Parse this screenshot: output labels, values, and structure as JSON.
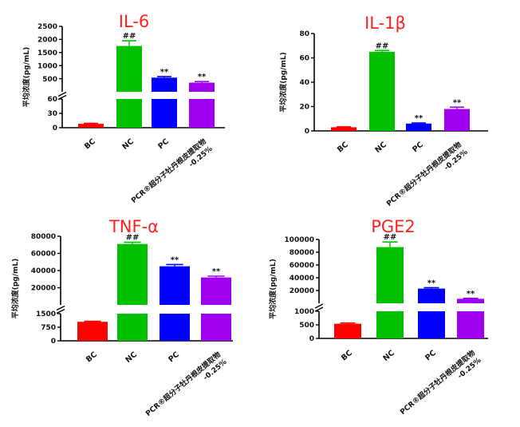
{
  "chart_data": [
    {
      "type": "bar",
      "title": "IL-6",
      "ylabel": "平均浓度(pg/mL)",
      "categories": [
        "BC",
        "NC",
        "PC",
        "PCR®超分子牡丹根皮提取物-0.25%"
      ],
      "category_lines": [
        [
          "BC"
        ],
        [
          "NC"
        ],
        [
          "PC"
        ],
        [
          "PCR®超分子牡丹根皮提取物",
          "-0.25%"
        ]
      ],
      "values": [
        8,
        1750,
        540,
        350
      ],
      "errors": [
        1,
        200,
        40,
        40
      ],
      "annotations": [
        "",
        "##",
        "**",
        "**"
      ],
      "colors": [
        "#ff0000",
        "#00c000",
        "#0000ff",
        "#a000f0"
      ],
      "axis_break": true,
      "lower_ylim": [
        0,
        60
      ],
      "lower_ticks": [
        "0",
        "30",
        "60"
      ],
      "upper_ylim": [
        0,
        2500
      ],
      "upper_ticks": [
        "500",
        "1000",
        "1500",
        "2000",
        "2500"
      ]
    },
    {
      "type": "bar",
      "title": "IL-1β",
      "ylabel": "平均浓度(pg/mL)",
      "categories": [
        "BC",
        "NC",
        "PC",
        "PCR®超分子牡丹根皮提取物-0.25%"
      ],
      "category_lines": [
        [
          "BC"
        ],
        [
          "NC"
        ],
        [
          "PC"
        ],
        [
          "PCR®超分子牡丹根皮提取物",
          "-0.25%"
        ]
      ],
      "values": [
        3,
        65,
        6,
        18
      ],
      "errors": [
        0.3,
        1,
        0.5,
        1.5
      ],
      "annotations": [
        "",
        "##",
        "**",
        "**"
      ],
      "colors": [
        "#ff0000",
        "#00c000",
        "#0000ff",
        "#a000f0"
      ],
      "axis_break": false,
      "ylim": [
        0,
        80
      ],
      "ticks": [
        "0",
        "20",
        "40",
        "60",
        "80"
      ]
    },
    {
      "type": "bar",
      "title": "TNF-α",
      "ylabel": "平均浓度(pg/mL)",
      "categories": [
        "BC",
        "NC",
        "PC",
        "PCR®超分子牡丹根皮提取物-0.25%"
      ],
      "category_lines": [
        [
          "BC"
        ],
        [
          "NC"
        ],
        [
          "PC"
        ],
        [
          "PCR®超分子牡丹根皮提取物",
          "-0.25%"
        ]
      ],
      "values": [
        1050,
        71000,
        45000,
        32000
      ],
      "errors": [
        30,
        2000,
        2000,
        1500
      ],
      "annotations": [
        "",
        "##",
        "**",
        "**"
      ],
      "colors": [
        "#ff0000",
        "#00c000",
        "#0000ff",
        "#a000f0"
      ],
      "axis_break": true,
      "lower_ylim": [
        0,
        1500
      ],
      "lower_ticks": [
        "0",
        "750",
        "1500"
      ],
      "upper_ylim": [
        0,
        80000
      ],
      "upper_ticks": [
        "20000",
        "40000",
        "60000",
        "80000"
      ]
    },
    {
      "type": "bar",
      "title": "PGE2",
      "ylabel": "平均浓度(pg/mL)",
      "categories": [
        "BC",
        "NC",
        "PC",
        "PCR®超分子牡丹根皮提取物-0.25%"
      ],
      "category_lines": [
        [
          "BC"
        ],
        [
          "NC"
        ],
        [
          "PC"
        ],
        [
          "PCR®超分子牡丹根皮提取物",
          "-0.25%"
        ]
      ],
      "values": [
        540,
        88000,
        23000,
        7000
      ],
      "errors": [
        30,
        8000,
        1500,
        800
      ],
      "annotations": [
        "",
        "##",
        "**",
        "**"
      ],
      "colors": [
        "#ff0000",
        "#00c000",
        "#0000ff",
        "#a000f0"
      ],
      "axis_break": true,
      "lower_ylim": [
        0,
        1000
      ],
      "lower_ticks": [
        "0",
        "500",
        "1000"
      ],
      "upper_ylim": [
        0,
        100000
      ],
      "upper_ticks": [
        "20000",
        "40000",
        "60000",
        "80000",
        "100000"
      ]
    }
  ]
}
